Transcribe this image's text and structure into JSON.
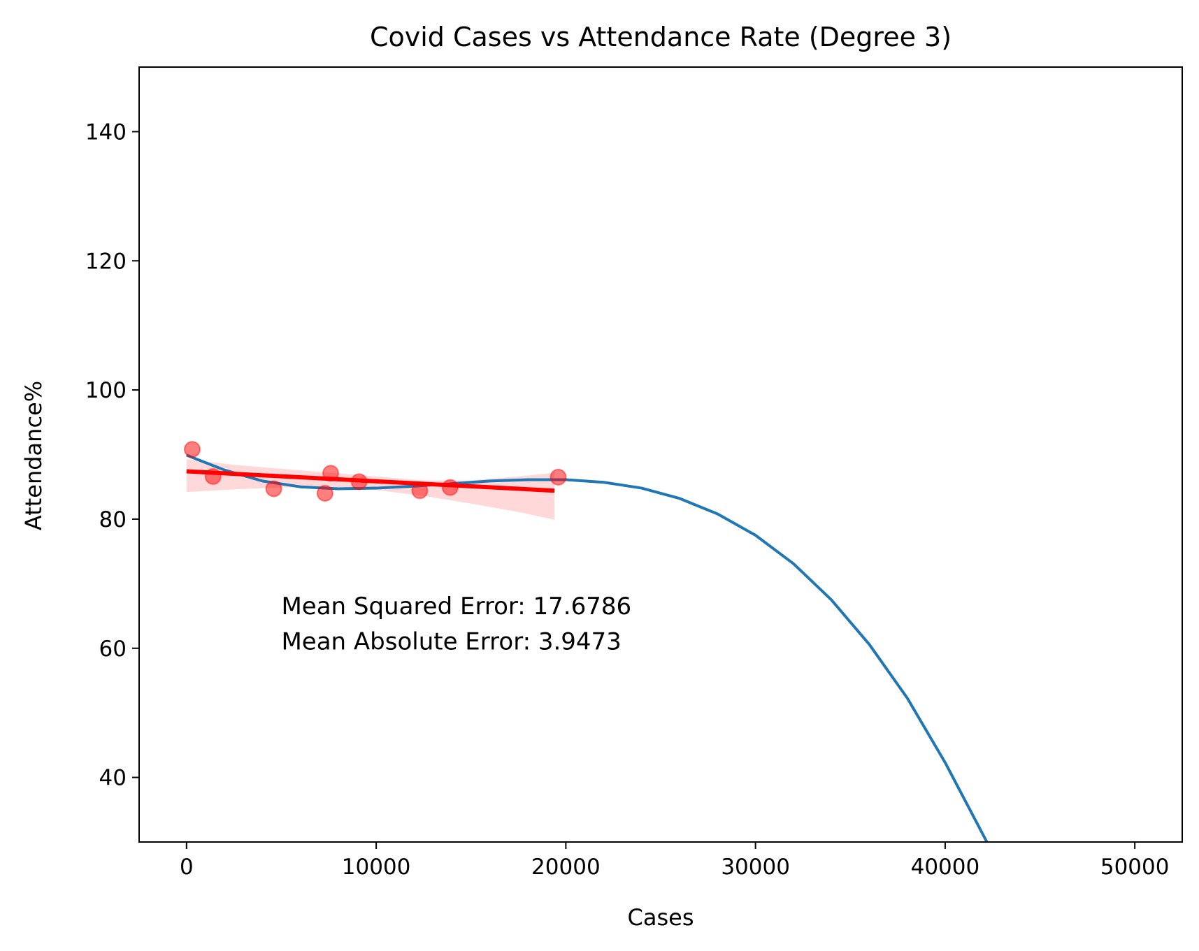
{
  "chart_data": {
    "type": "scatter",
    "title": "Covid Cases vs Attendance Rate (Degree 3)",
    "xlabel": "Cases",
    "ylabel": "Attendance%",
    "xlim": [
      -2500,
      52500
    ],
    "ylim": [
      30,
      150
    ],
    "x_ticks": [
      0,
      10000,
      20000,
      30000,
      40000,
      50000
    ],
    "y_ticks": [
      40,
      60,
      80,
      100,
      120,
      140
    ],
    "grid": false,
    "legend": "none",
    "series": [
      {
        "kind": "scatter",
        "color": "#ff0000",
        "points": [
          {
            "x": 300,
            "y": 90.8
          },
          {
            "x": 1400,
            "y": 86.6
          },
          {
            "x": 4600,
            "y": 84.7
          },
          {
            "x": 7300,
            "y": 84.0
          },
          {
            "x": 7600,
            "y": 87.1
          },
          {
            "x": 9100,
            "y": 85.8
          },
          {
            "x": 12300,
            "y": 84.4
          },
          {
            "x": 13900,
            "y": 84.9
          },
          {
            "x": 19600,
            "y": 86.5
          }
        ]
      },
      {
        "kind": "regression",
        "color": "#ff0000",
        "x": [
          0,
          19400
        ],
        "y": [
          87.4,
          84.4
        ],
        "ci_band": {
          "x": [
            0,
            2500,
            5000,
            7500,
            10000,
            12500,
            15000,
            17500,
            19400
          ],
          "lower": [
            84.2,
            84.6,
            84.9,
            85.0,
            84.5,
            83.6,
            82.4,
            81.1,
            79.9
          ],
          "upper": [
            89.3,
            88.4,
            87.8,
            87.2,
            86.6,
            86.0,
            86.0,
            86.6,
            87.2
          ]
        }
      },
      {
        "kind": "line",
        "color": "#1f77b4",
        "x": [
          0,
          2000,
          4000,
          6000,
          8000,
          10000,
          12000,
          14000,
          16000,
          18000,
          20000,
          22000,
          24000,
          26000,
          28000,
          30000,
          32000,
          34000,
          36000,
          38000,
          40000,
          42200
        ],
        "y": [
          89.9,
          87.6,
          85.9,
          85.0,
          84.7,
          84.8,
          85.1,
          85.5,
          85.9,
          86.1,
          86.1,
          85.7,
          84.8,
          83.2,
          80.8,
          77.5,
          73.1,
          67.5,
          60.6,
          52.3,
          42.3,
          30.0
        ]
      }
    ],
    "annotations": [
      {
        "text": "Mean Squared Error: 17.6786",
        "x": 5000,
        "y": 65.3
      },
      {
        "text": "Mean Absolute Error: 3.9473",
        "x": 5000,
        "y": 59.8
      }
    ]
  }
}
